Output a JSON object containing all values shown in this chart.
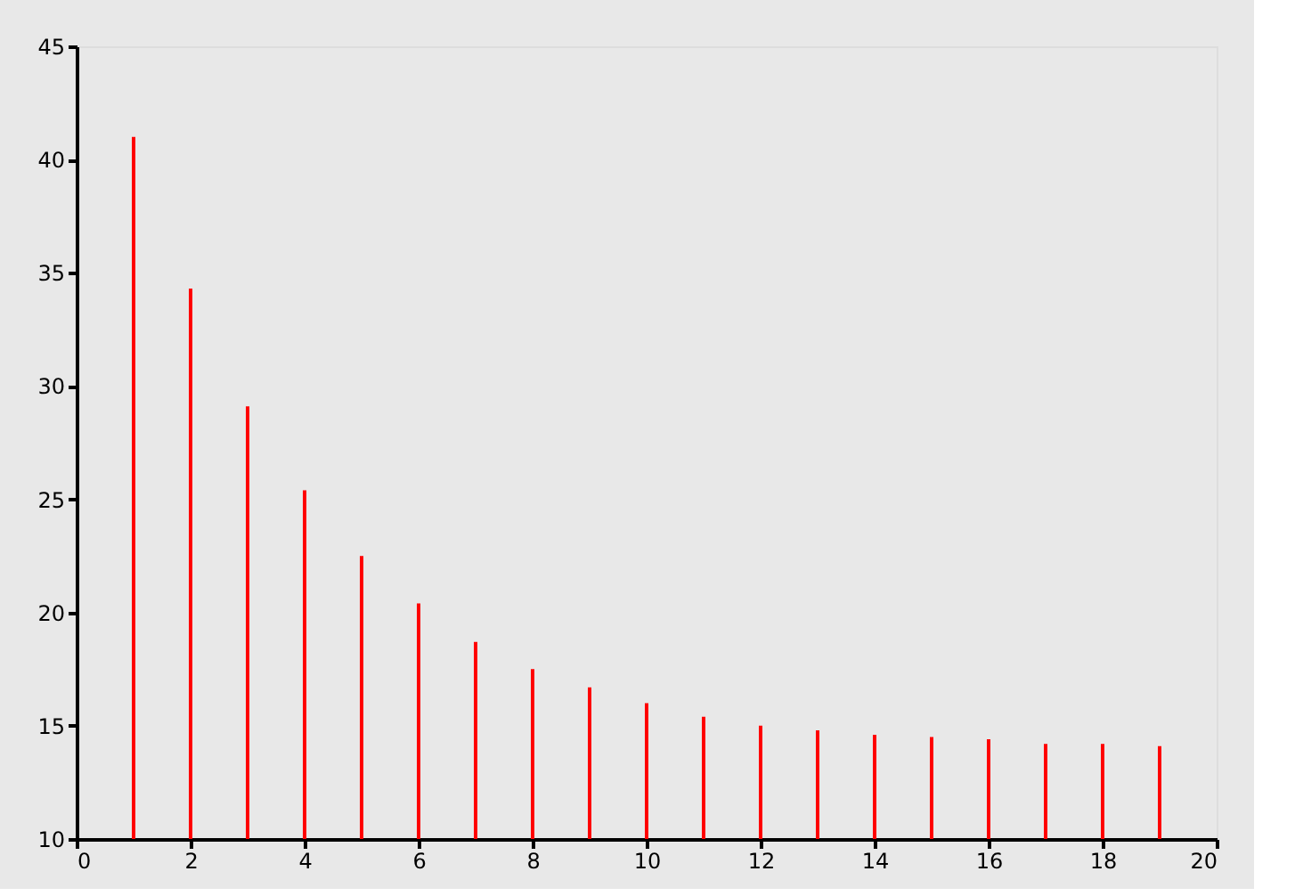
{
  "chart_data": {
    "type": "bar",
    "x": [
      1,
      2,
      3,
      4,
      5,
      6,
      7,
      8,
      9,
      10,
      11,
      12,
      13,
      14,
      15,
      16,
      17,
      18,
      19
    ],
    "values": [
      41,
      34.3,
      29.1,
      25.4,
      22.5,
      20.4,
      18.7,
      17.5,
      16.7,
      16.0,
      15.4,
      15.0,
      14.8,
      14.6,
      14.5,
      14.4,
      14.2,
      14.2,
      14.1
    ],
    "color": "#ff0000",
    "xlim": [
      0,
      20
    ],
    "xticks": [
      0,
      2,
      4,
      6,
      8,
      10,
      12,
      14,
      16,
      18,
      20
    ],
    "ylim": [
      10,
      45
    ],
    "yticks": [
      10,
      15,
      20,
      25,
      30,
      35,
      40,
      45
    ],
    "grid": false
  }
}
